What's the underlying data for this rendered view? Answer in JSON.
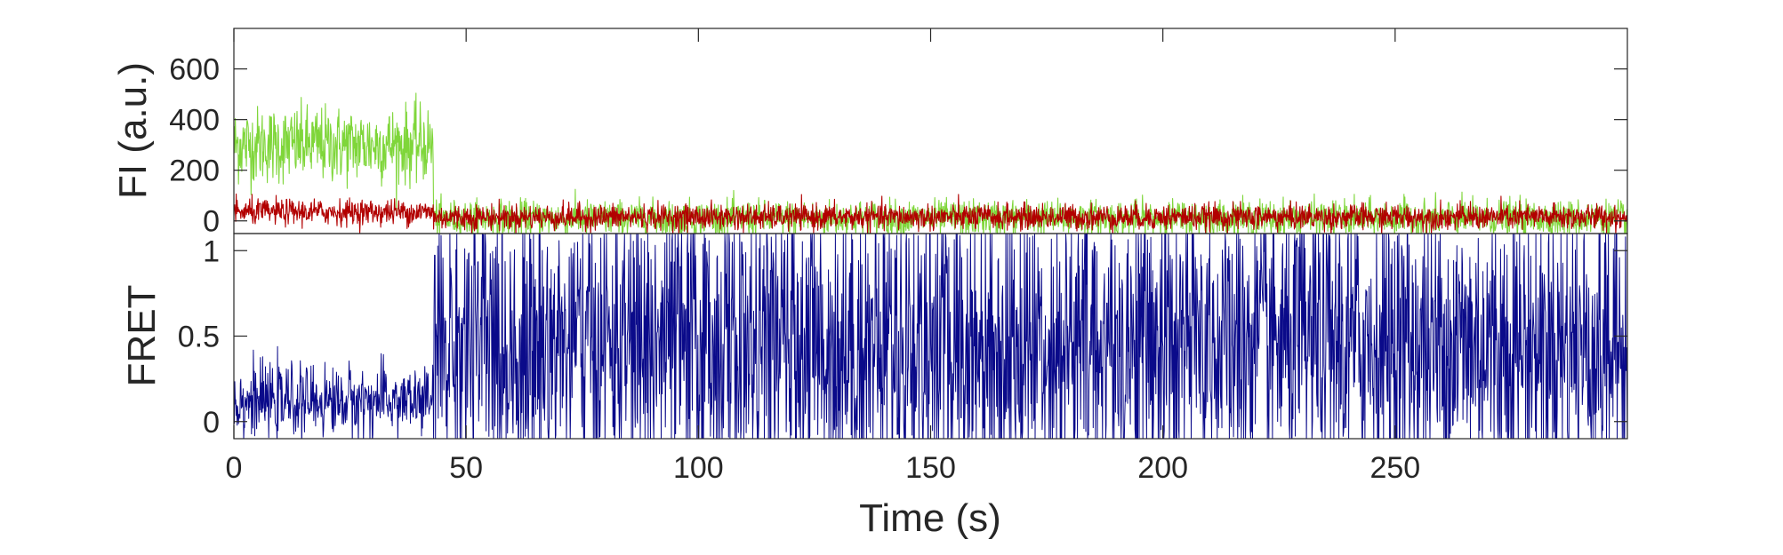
{
  "chart_data": [
    {
      "type": "line",
      "panel": "top",
      "ylabel": "FI (a.u.)",
      "xlabel": "",
      "xlim": [
        0,
        300
      ],
      "ylim": [
        -50,
        760
      ],
      "yticks": [
        0,
        200,
        400,
        600
      ],
      "show_x_tick_labels": false,
      "grid": false,
      "colors": {
        "donor": "#7fd63a",
        "acceptor": "#b20000"
      },
      "series": [
        {
          "name": "",
          "color": "#7fd63a",
          "segments": [
            {
              "t_start": 0,
              "t_end": 43,
              "mean": 300,
              "noise": 75
            },
            {
              "t_start": 43,
              "t_end": 300,
              "mean": 10,
              "noise": 35
            }
          ]
        },
        {
          "name": "",
          "color": "#b20000",
          "segments": [
            {
              "t_start": 0,
              "t_end": 43,
              "mean": 35,
              "noise": 25
            },
            {
              "t_start": 43,
              "t_end": 300,
              "mean": 15,
              "noise": 25
            }
          ]
        }
      ]
    },
    {
      "type": "line",
      "panel": "bottom",
      "ylabel": "FRET",
      "xlabel": "Time (s)",
      "xlim": [
        0,
        300
      ],
      "ylim": [
        -0.1,
        1.1
      ],
      "yticks": [
        0,
        0.5,
        1
      ],
      "ytick_labels": [
        "0",
        "0.5",
        "1"
      ],
      "xticks": [
        0,
        50,
        100,
        150,
        200,
        250
      ],
      "xtick_labels": [
        "0",
        "50",
        "100",
        "150",
        "200",
        "250"
      ],
      "grid": false,
      "series": [
        {
          "name": "",
          "color": "#0a0a8a",
          "segments": [
            {
              "t_start": 0,
              "t_end": 43,
              "mean": 0.12,
              "noise": 0.1
            },
            {
              "t_start": 43,
              "t_end": 300,
              "mean": 0.45,
              "noise": 0.45,
              "clip": [
                -0.1,
                1.1
              ]
            }
          ]
        }
      ]
    }
  ]
}
